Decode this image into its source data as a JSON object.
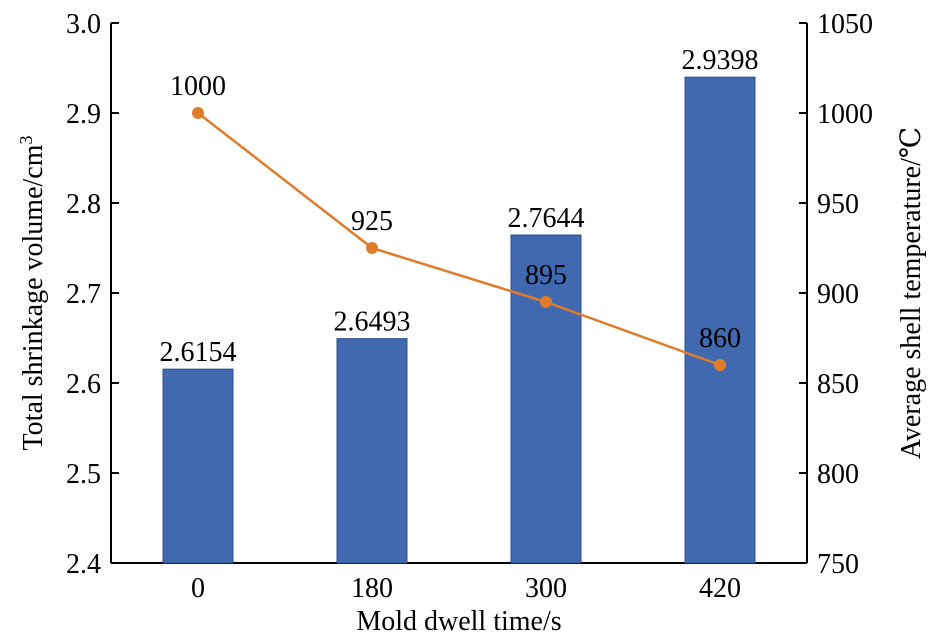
{
  "chart_data": {
    "type": "bar",
    "categories": [
      "0",
      "180",
      "300",
      "420"
    ],
    "xlabel": "Mold dwell time/s",
    "ylabel": "Total shrinkage volume/cm",
    "ylabel_superscript": "3",
    "y2label": "Average shell temperature/℃",
    "ylim": [
      2.4,
      3.0
    ],
    "y2lim": [
      750,
      1050
    ],
    "yticks": [
      "2.4",
      "2.5",
      "2.6",
      "2.7",
      "2.8",
      "2.9",
      "3.0"
    ],
    "y2ticks": [
      "750",
      "800",
      "850",
      "900",
      "950",
      "1000",
      "1050"
    ],
    "grid": false,
    "series": [
      {
        "type": "bar",
        "axis": "left",
        "values": [
          2.6154,
          2.6493,
          2.7644,
          2.9398
        ],
        "labels": [
          "2.6154",
          "2.6493",
          "2.7644",
          "2.9398"
        ],
        "color": "#4169b0"
      },
      {
        "type": "line",
        "axis": "right",
        "values": [
          1000,
          925,
          895,
          860
        ],
        "labels": [
          "1000",
          "925",
          "895",
          "860"
        ],
        "color": "#e07b2a"
      }
    ]
  }
}
